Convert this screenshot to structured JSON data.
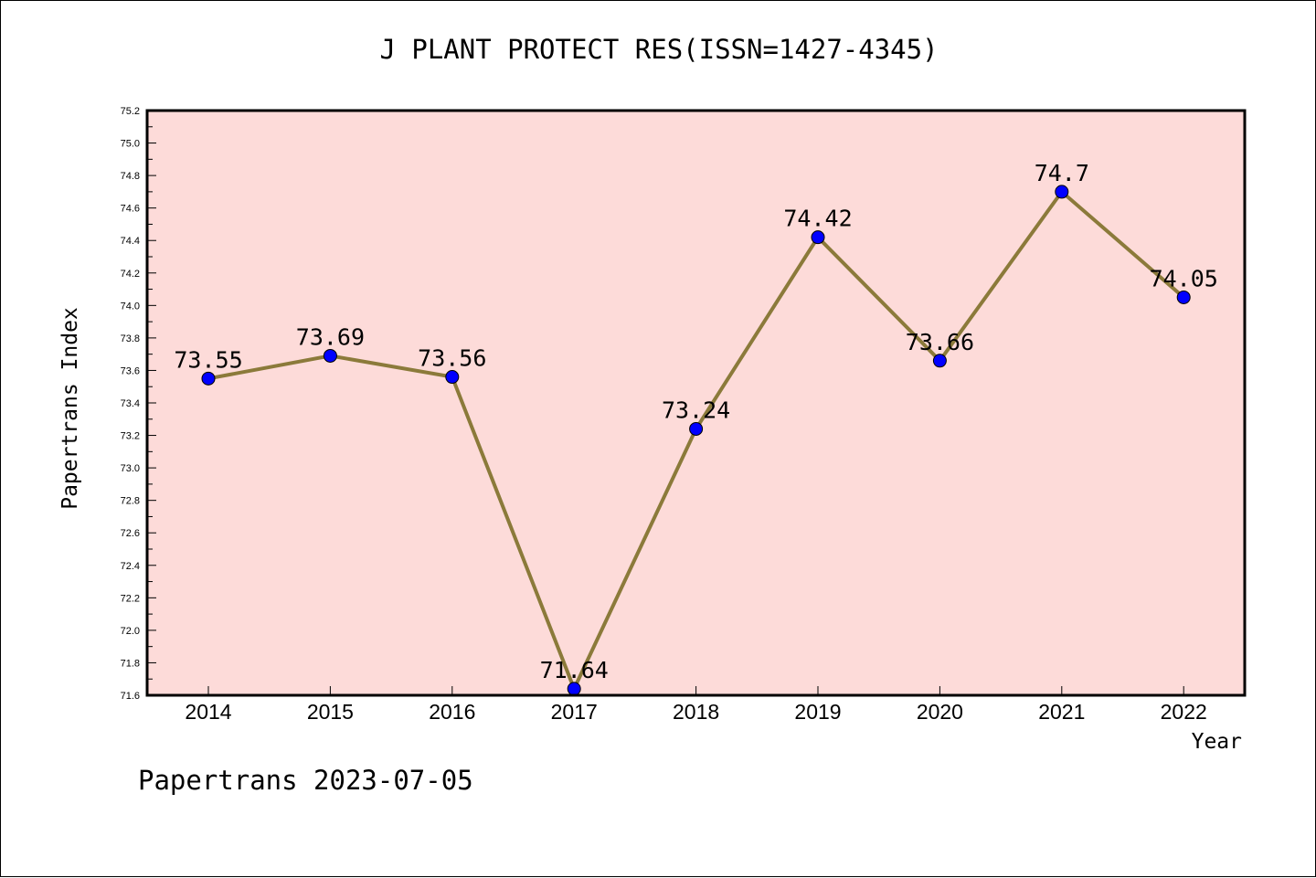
{
  "chart_data": {
    "type": "line",
    "title": "J PLANT PROTECT RES(ISSN=1427-4345)",
    "xlabel": "Year",
    "ylabel": "Papertrans Index",
    "categories": [
      "2014",
      "2015",
      "2016",
      "2017",
      "2018",
      "2019",
      "2020",
      "2021",
      "2022"
    ],
    "series": [
      {
        "values": [
          73.55,
          73.69,
          73.56,
          71.64,
          73.24,
          74.42,
          73.66,
          74.7,
          74.05
        ],
        "labels": [
          "73.55",
          "73.69",
          "73.56",
          "71.64",
          "73.24",
          "74.42",
          "73.66",
          "74.7",
          "74.05"
        ]
      }
    ],
    "ylim": [
      71.6,
      75.2
    ],
    "yticks": [
      "71.6",
      "71.8",
      "72.0",
      "72.2",
      "72.4",
      "72.6",
      "72.8",
      "73.0",
      "73.2",
      "73.4",
      "73.6",
      "73.8",
      "74.0",
      "74.2",
      "74.4",
      "74.6",
      "74.8",
      "75.0",
      "75.2"
    ],
    "grid": false,
    "colors": {
      "plot_background": "#fddbd9",
      "line": "#8b7a3a",
      "marker": "#0000ff"
    }
  },
  "footer": {
    "credit": "Papertrans 2023-07-05"
  }
}
